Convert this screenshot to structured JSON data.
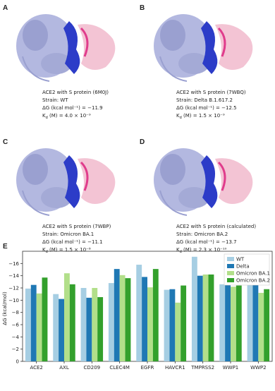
{
  "panels": [
    {
      "letter": "A",
      "lines": [
        "ACE2 with S protein (6M0J)",
        "Strain: WT",
        "ΔG (kcal mol⁻¹) = −11.9"
      ],
      "kd": {
        "symbol": "K",
        "subscript": "d",
        "text": " (M) = 4.0 × 10⁻⁹"
      }
    },
    {
      "letter": "B",
      "lines": [
        "ACE2 with S protein (7WBQ)",
        "Strain: Delta B.1.617.2",
        "ΔG (kcal mol⁻¹) = −12.5"
      ],
      "kd": {
        "symbol": "K",
        "subscript": "d",
        "text": " (M) = 1.5 × 10⁻⁹"
      }
    },
    {
      "letter": "C",
      "lines": [
        "ACE2 with S protein (7WBP)",
        "Strain: Omicron BA.1",
        "ΔG (kcal mol⁻¹) = −11.1"
      ],
      "kd": {
        "symbol": "K",
        "subscript": "d",
        "text": " (M) = 1.5 × 10⁻⁸"
      }
    },
    {
      "letter": "D",
      "lines": [
        "ACE2 with S protein (calculated)",
        "Strain: Omicron BA.2",
        "ΔG (kcal mol⁻¹) = −13.7"
      ],
      "kd": {
        "symbol": "K",
        "subscript": "d",
        "text": " (M) = 2.3 × 10⁻¹⁰"
      }
    }
  ],
  "chart_panel_letter": "E",
  "chart_data": {
    "type": "bar",
    "y_label": "ΔG (kcal/mol)",
    "categories": [
      "ACE2",
      "AXL",
      "CD209",
      "CLEC4M",
      "EGFR",
      "HAVCR1",
      "TMPRSS2",
      "WWP1",
      "WWP2"
    ],
    "series": [
      {
        "name": "WT",
        "color": "#a6cee3",
        "values": [
          -11.9,
          -11.0,
          -12.0,
          -12.8,
          -15.8,
          -11.7,
          -17.1,
          -12.6,
          -13.2
        ]
      },
      {
        "name": "Delta",
        "color": "#1f78b4",
        "values": [
          -12.5,
          -10.2,
          -10.4,
          -15.1,
          -13.8,
          -11.8,
          -14.0,
          -13.3,
          -13.1
        ]
      },
      {
        "name": "Omicron BA.1",
        "color": "#b2df8a",
        "values": [
          -11.1,
          -14.4,
          -12.0,
          -14.1,
          -12.1,
          -9.6,
          -14.2,
          -12.2,
          -11.2
        ]
      },
      {
        "name": "Omicron BA.2",
        "color": "#33a02c",
        "values": [
          -13.7,
          -12.6,
          -10.5,
          -13.6,
          -15.1,
          -12.4,
          -14.2,
          -12.4,
          -11.8
        ]
      }
    ],
    "ylim": [
      0,
      -18
    ],
    "yticks": [
      0,
      {
        "value": -2,
        "label": "−2"
      },
      {
        "value": -4,
        "label": "−4"
      },
      {
        "value": -6,
        "label": "−6"
      },
      {
        "value": -8,
        "label": "−8"
      },
      {
        "value": -10,
        "label": "−10"
      },
      {
        "value": -12,
        "label": "−12"
      },
      {
        "value": -14,
        "label": "−14"
      },
      {
        "value": -16,
        "label": "−16"
      }
    ],
    "legend": "upper-right",
    "grid": false
  }
}
